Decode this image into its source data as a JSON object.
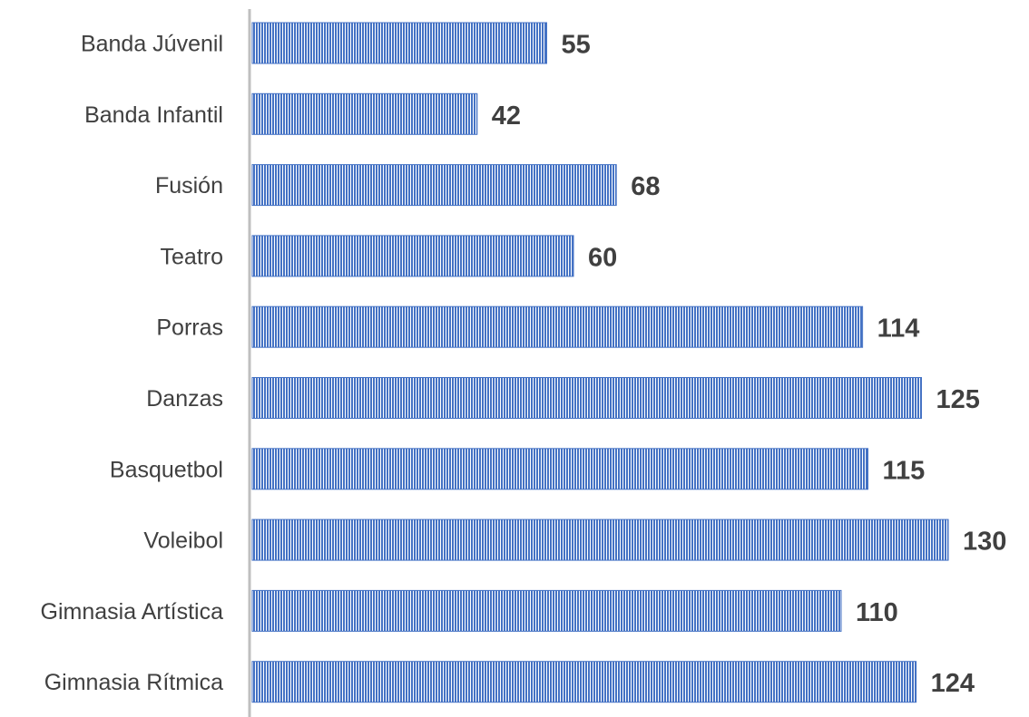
{
  "chart_data": {
    "type": "bar",
    "orientation": "horizontal",
    "categories": [
      "Banda Júvenil",
      "Banda Infantil",
      "Fusión",
      "Teatro",
      "Porras",
      "Danzas",
      "Basquetbol",
      "Voleibol",
      "Gimnasia Artística",
      "Gimnasia Rítmica"
    ],
    "values": [
      55,
      42,
      68,
      60,
      114,
      125,
      115,
      130,
      110,
      124
    ],
    "xlim": [
      0,
      130
    ],
    "grid": false,
    "legend": "none",
    "data_labels": true,
    "colors": {
      "bar": "#4472C4",
      "bar_stripe": "#ffffff",
      "axis": "#bfbfbf",
      "text": "#404040"
    }
  }
}
